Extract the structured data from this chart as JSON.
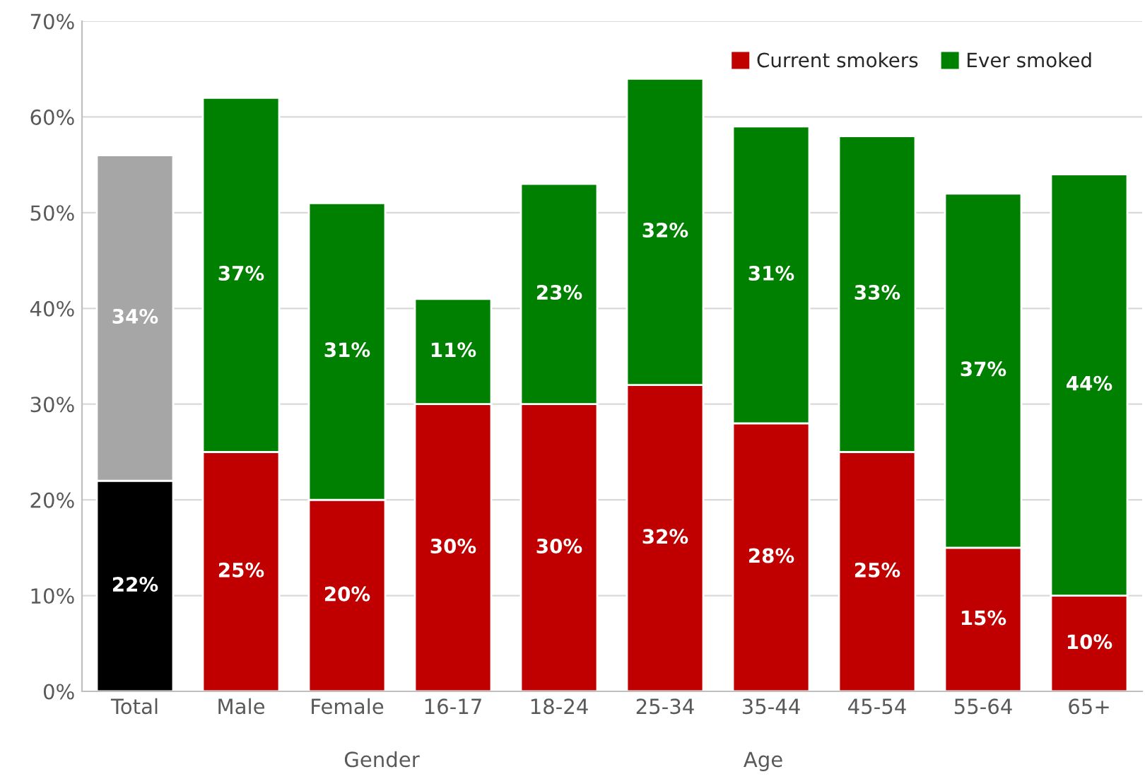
{
  "chart_data": {
    "type": "bar",
    "stacked": true,
    "categories": [
      "Total",
      "Male",
      "Female",
      "16-17",
      "18-24",
      "25-34",
      "35-44",
      "45-54",
      "55-64",
      "65+"
    ],
    "series": [
      {
        "name": "Current smokers",
        "color": "#c00000",
        "colors": [
          "#000000",
          "#c00000",
          "#c00000",
          "#c00000",
          "#c00000",
          "#c00000",
          "#c00000",
          "#c00000",
          "#c00000",
          "#c00000"
        ],
        "values": [
          22,
          25,
          20,
          30,
          30,
          32,
          28,
          25,
          15,
          10
        ],
        "value_labels": [
          "22%",
          "25%",
          "20%",
          "30%",
          "30%",
          "32%",
          "28%",
          "25%",
          "15%",
          "10%"
        ]
      },
      {
        "name": "Ever smoked",
        "color": "#008000",
        "colors": [
          "#a6a6a6",
          "#008000",
          "#008000",
          "#008000",
          "#008000",
          "#008000",
          "#008000",
          "#008000",
          "#008000",
          "#008000"
        ],
        "values": [
          34,
          37,
          31,
          11,
          23,
          32,
          31,
          33,
          37,
          44
        ],
        "value_labels": [
          "34%",
          "37%",
          "31%",
          "11%",
          "23%",
          "32%",
          "31%",
          "33%",
          "37%",
          "44%"
        ]
      }
    ],
    "ylim": [
      0,
      70
    ],
    "yticks": [
      {
        "value": 0,
        "label": "0%"
      },
      {
        "value": 10,
        "label": "10%"
      },
      {
        "value": 20,
        "label": "20%"
      },
      {
        "value": 30,
        "label": "30%"
      },
      {
        "value": 40,
        "label": "40%"
      },
      {
        "value": 50,
        "label": "50%"
      },
      {
        "value": 60,
        "label": "60%"
      },
      {
        "value": 70,
        "label": "70%"
      }
    ],
    "grid": "y",
    "legend": "top right",
    "annotations": [
      "Gender",
      "Age"
    ]
  }
}
